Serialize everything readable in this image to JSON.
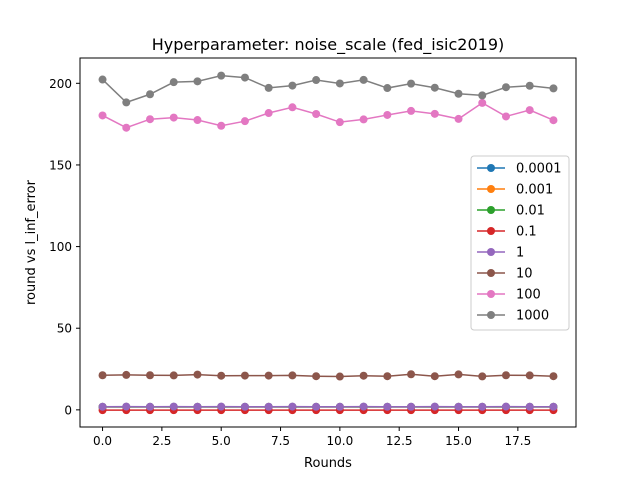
{
  "chart_data": {
    "type": "line",
    "title": "Hyperparameter: noise_scale (fed_isic2019)",
    "xlabel": "Rounds",
    "ylabel": "round vs l_inf_error",
    "xlim": [
      -0.95,
      19.95
    ],
    "ylim": [
      -10.5,
      215.5
    ],
    "xticks": [
      0.0,
      2.5,
      5.0,
      7.5,
      10.0,
      12.5,
      15.0,
      17.5
    ],
    "xtick_labels": [
      "0.0",
      "2.5",
      "5.0",
      "7.5",
      "10.0",
      "12.5",
      "15.0",
      "17.5"
    ],
    "yticks": [
      0,
      50,
      100,
      150,
      200
    ],
    "ytick_labels": [
      "0",
      "50",
      "100",
      "150",
      "200"
    ],
    "grid": false,
    "legend_position": "center-right",
    "x": [
      0,
      1,
      2,
      3,
      4,
      5,
      6,
      7,
      8,
      9,
      10,
      11,
      12,
      13,
      14,
      15,
      16,
      17,
      18,
      19
    ],
    "series": [
      {
        "name": "0.0001",
        "color": "#1f77b4",
        "values": [
          1.8,
          1.8,
          1.8,
          1.8,
          1.8,
          1.8,
          1.8,
          1.8,
          1.8,
          1.8,
          1.8,
          1.8,
          1.8,
          1.8,
          1.8,
          1.8,
          1.8,
          1.8,
          1.8,
          1.8
        ]
      },
      {
        "name": "0.001",
        "color": "#ff7f0e",
        "values": [
          1.8,
          1.8,
          1.8,
          1.8,
          1.8,
          1.8,
          1.8,
          1.8,
          1.8,
          1.8,
          1.8,
          1.8,
          1.8,
          1.8,
          1.8,
          1.8,
          1.8,
          1.8,
          1.8,
          1.8
        ]
      },
      {
        "name": "0.01",
        "color": "#2ca02c",
        "values": [
          1.8,
          1.8,
          1.8,
          1.8,
          1.8,
          1.8,
          1.8,
          1.8,
          1.8,
          1.8,
          1.8,
          1.8,
          1.8,
          1.8,
          1.8,
          1.8,
          1.8,
          1.8,
          1.8,
          1.8
        ]
      },
      {
        "name": "0.1",
        "color": "#d62728",
        "values": [
          -0.2,
          -0.2,
          -0.2,
          -0.2,
          -0.2,
          -0.2,
          -0.2,
          -0.2,
          -0.2,
          -0.2,
          -0.2,
          -0.2,
          -0.2,
          -0.2,
          -0.2,
          -0.2,
          -0.2,
          -0.2,
          -0.2,
          -0.2
        ]
      },
      {
        "name": "1",
        "color": "#9467bd",
        "values": [
          1.9,
          2.0,
          1.9,
          2.0,
          1.9,
          2.0,
          1.9,
          1.9,
          2.0,
          1.9,
          1.9,
          2.0,
          1.9,
          1.9,
          2.0,
          1.9,
          1.9,
          2.0,
          1.9,
          1.9
        ]
      },
      {
        "name": "10",
        "color": "#8c564b",
        "values": [
          21.2,
          21.4,
          21.2,
          21.1,
          21.6,
          20.9,
          21.0,
          21.0,
          21.1,
          20.6,
          20.4,
          20.9,
          20.6,
          21.8,
          20.6,
          21.7,
          20.5,
          21.2,
          21.1,
          20.6
        ]
      },
      {
        "name": "100",
        "color": "#e377c2",
        "values": [
          180.3,
          172.8,
          178.0,
          179.0,
          177.5,
          174.0,
          176.8,
          181.8,
          185.3,
          181.2,
          176.2,
          177.9,
          180.6,
          183.1,
          181.3,
          178.2,
          188.0,
          179.7,
          183.6,
          177.4
        ]
      },
      {
        "name": "1000",
        "color": "#7f7f7f",
        "values": [
          202.3,
          188.3,
          193.3,
          200.7,
          201.2,
          204.7,
          203.5,
          197.2,
          198.6,
          202.0,
          199.9,
          202.1,
          197.1,
          199.8,
          197.3,
          193.6,
          192.6,
          197.6,
          198.5,
          196.9
        ]
      }
    ]
  }
}
